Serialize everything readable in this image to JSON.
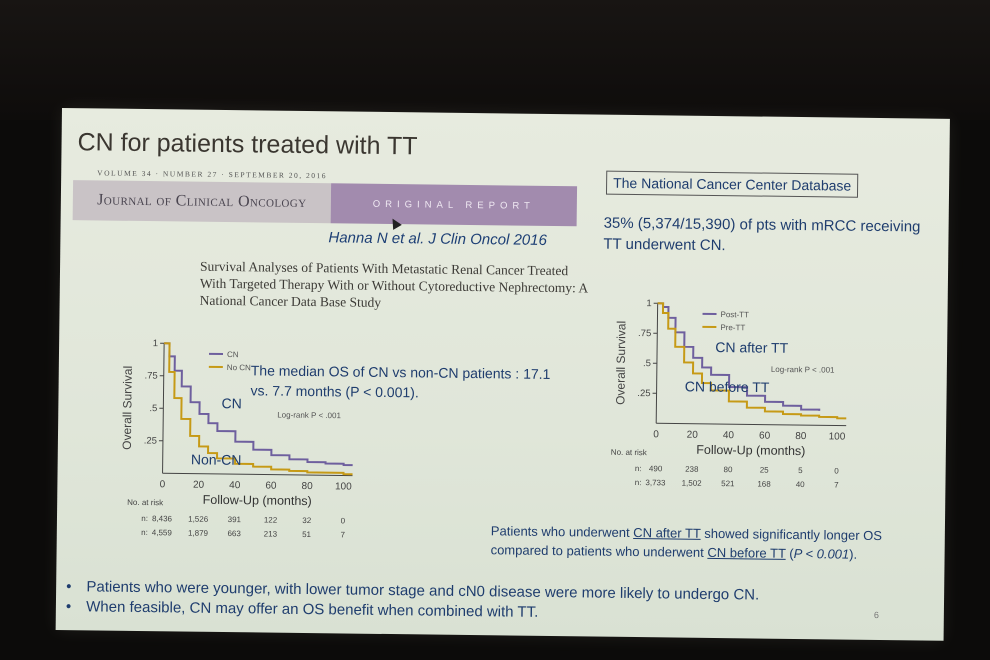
{
  "slide": {
    "title": "CN for patients treated with TT",
    "journal_meta": "VOLUME 34 · NUMBER 27 · SEPTEMBER 20, 2016",
    "journal_name": "Journal of Clinical Oncology",
    "report_type": "ORIGINAL REPORT",
    "citation": "Hanna N et al. J Clin Oncol 2016",
    "study_title": "Survival Analyses of Patients With Metastatic Renal Cancer Treated With Targeted Therapy With or Without Cytoreductive Nephrectomy: A National Cancer Data Base Study",
    "database_box": "The National Cancer Center Database",
    "stat_text": "35% (5,374/15,390) of pts with mRCC receiving TT underwent CN.",
    "median_note": "The median OS of CN vs non-CN patients : 17.1 vs. 7.7 months (P < 0.001).",
    "conclusion": {
      "part1": "Patients who underwent ",
      "link1": "CN after TT",
      "part2": " showed significantly longer OS compared to patients who underwent ",
      "link2": "CN before TT",
      "part3": " (",
      "pvalue": "P < 0.001",
      "part4": ")."
    },
    "bullets": [
      "Patients who were younger, with lower tumor stage and cN0 disease were more likely to undergo CN.",
      "When feasible, CN may offer an OS benefit when combined with TT."
    ],
    "slide_number": "6",
    "colors": {
      "title": "#3a3630",
      "body_text": "#1f3d6e",
      "journal_band_gray": "#c9c3c6",
      "journal_band_purple": "#a28bae",
      "curve_purple": "#6e5f9e",
      "curve_gold": "#c69a16"
    }
  },
  "chart_data": [
    {
      "type": "line",
      "ylabel": "Overall Survival",
      "xlabel": "Follow-Up (months)",
      "x_ticks": [
        0,
        20,
        40,
        60,
        80,
        100
      ],
      "y_ticks": [
        ".25",
        ".5",
        ".75",
        "1"
      ],
      "xlim": [
        0,
        105
      ],
      "ylim": [
        0,
        1
      ],
      "legend_position": "top",
      "annotation": "Log-rank P < .001",
      "series": [
        {
          "name": "CN",
          "curve_label": "CN",
          "color": "#6e5f9e",
          "x": [
            0,
            3,
            6,
            10,
            15,
            20,
            25,
            30,
            40,
            50,
            60,
            70,
            80,
            90,
            100,
            105
          ],
          "y": [
            1,
            0.9,
            0.79,
            0.67,
            0.55,
            0.46,
            0.39,
            0.33,
            0.25,
            0.19,
            0.15,
            0.12,
            0.1,
            0.09,
            0.08,
            0.08
          ]
        },
        {
          "name": "No CN",
          "curve_label": "Non-CN",
          "color": "#c69a16",
          "x": [
            0,
            3,
            6,
            10,
            15,
            20,
            25,
            30,
            40,
            50,
            60,
            70,
            80,
            90,
            100,
            105
          ],
          "y": [
            1,
            0.78,
            0.58,
            0.42,
            0.29,
            0.21,
            0.16,
            0.12,
            0.08,
            0.06,
            0.04,
            0.03,
            0.02,
            0.02,
            0.01,
            0.01
          ]
        }
      ],
      "at_risk": {
        "heading": "No. at risk",
        "rows": [
          {
            "label": "n:",
            "values": [
              "8,436",
              "1,526",
              "391",
              "122",
              "32",
              "0"
            ]
          },
          {
            "label": "n:",
            "values": [
              "4,559",
              "1,879",
              "663",
              "213",
              "51",
              "7"
            ]
          }
        ]
      }
    },
    {
      "type": "line",
      "ylabel": "Overall Survival",
      "xlabel": "Follow-Up (months)",
      "x_ticks": [
        0,
        20,
        40,
        60,
        80,
        100
      ],
      "y_ticks": [
        ".25",
        ".5",
        ".75",
        "1"
      ],
      "xlim": [
        0,
        105
      ],
      "ylim": [
        0,
        1
      ],
      "legend_position": "top",
      "annotation": "Log-rank P < .001",
      "series": [
        {
          "name": "Post-TT",
          "curve_label": "CN after TT",
          "color": "#6e5f9e",
          "x": [
            0,
            3,
            6,
            10,
            15,
            20,
            25,
            30,
            40,
            50,
            60,
            70,
            80,
            90
          ],
          "y": [
            1,
            0.97,
            0.88,
            0.76,
            0.64,
            0.55,
            0.47,
            0.41,
            0.31,
            0.24,
            0.19,
            0.16,
            0.13,
            0.12
          ]
        },
        {
          "name": "Pre-TT",
          "curve_label": "CN before TT",
          "color": "#c69a16",
          "x": [
            0,
            3,
            6,
            10,
            15,
            20,
            25,
            30,
            40,
            50,
            60,
            70,
            80,
            90,
            100,
            105
          ],
          "y": [
            1,
            0.92,
            0.79,
            0.64,
            0.51,
            0.42,
            0.34,
            0.28,
            0.19,
            0.14,
            0.11,
            0.09,
            0.08,
            0.07,
            0.06,
            0.06
          ]
        }
      ],
      "at_risk": {
        "heading": "No. at risk",
        "rows": [
          {
            "label": "n:",
            "values": [
              "490",
              "238",
              "80",
              "25",
              "5",
              "0"
            ]
          },
          {
            "label": "n:",
            "values": [
              "3,733",
              "1,502",
              "521",
              "168",
              "40",
              "7"
            ]
          }
        ]
      }
    }
  ]
}
